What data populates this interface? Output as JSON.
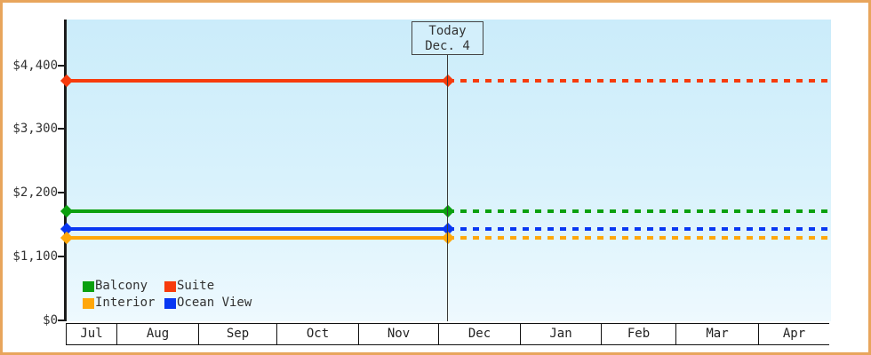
{
  "frame": {
    "border_color": "#e8a55c",
    "background": "#ffffff"
  },
  "chart_data": {
    "type": "line",
    "title": "",
    "description": "Price history chart: four cabin-category price lines, solid before today and dotted (forecast) after today",
    "plot_background_top": "#cbecfa",
    "plot_background_bottom": "#eef9fe",
    "x_axis": {
      "months": [
        "Jul",
        "Aug",
        "Sep",
        "Oct",
        "Nov",
        "Dec",
        "Jan",
        "Feb",
        "Mar",
        "Apr"
      ]
    },
    "y_axis": {
      "ticks": [
        {
          "label": "$0",
          "value": 0
        },
        {
          "label": "$1,100",
          "value": 1100
        },
        {
          "label": "$2,200",
          "value": 2200
        },
        {
          "label": "$3,300",
          "value": 3300
        },
        {
          "label": "$4,400",
          "value": 4400
        }
      ],
      "top_value": 5170
    },
    "today": {
      "line1": "Today",
      "line2": "Dec. 4"
    },
    "series": [
      {
        "name": "Suite",
        "color": "#f73b0c",
        "value": 4130
      },
      {
        "name": "Balcony",
        "color": "#0ba00f",
        "value": 1880
      },
      {
        "name": "Ocean View",
        "color": "#0837f2",
        "value": 1580
      },
      {
        "name": "Interior",
        "color": "#ffa70a",
        "value": 1430
      }
    ],
    "legend": {
      "position": "bottom-left-inside",
      "items": [
        {
          "label": "Balcony",
          "color": "#0ba00f"
        },
        {
          "label": "Suite",
          "color": "#f73b0c"
        },
        {
          "label": "Interior",
          "color": "#ffa70a"
        },
        {
          "label": "Ocean View",
          "color": "#0837f2"
        }
      ]
    }
  }
}
